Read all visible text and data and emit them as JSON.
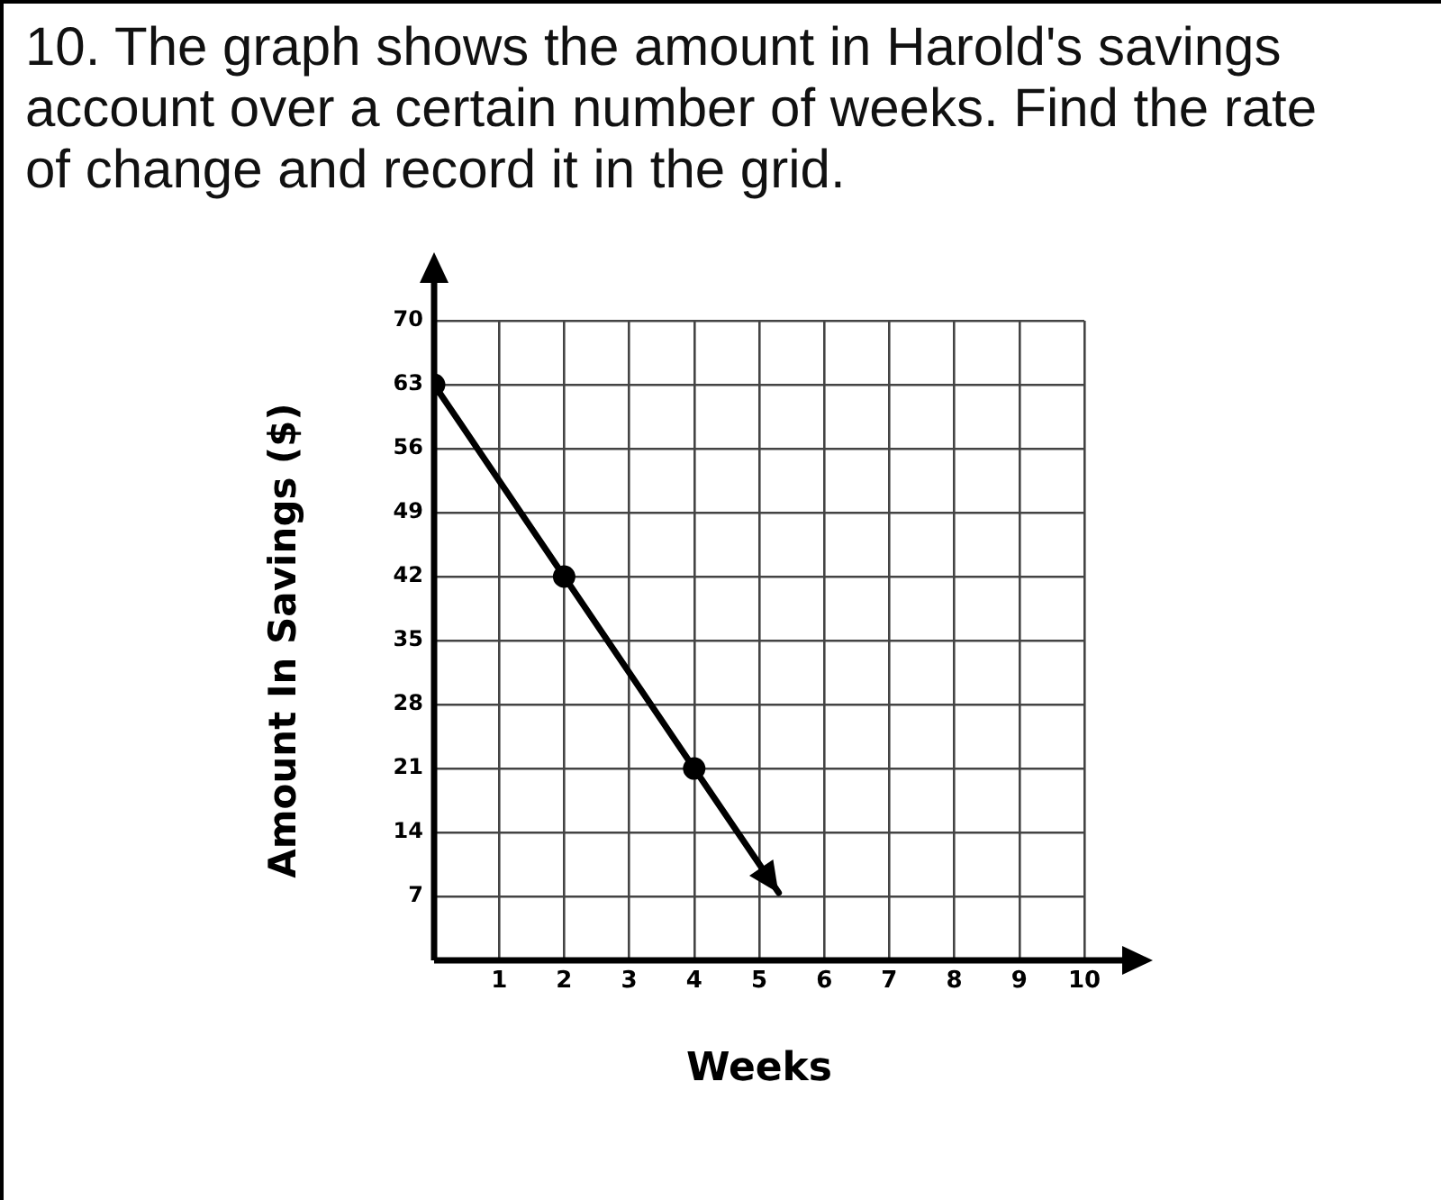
{
  "chart_data": {
    "type": "line",
    "title": "10. The graph shows the amount in Harold's savings account over a certain number of weeks. Find the rate of change and record it in the grid.",
    "xlabel": "Weeks",
    "ylabel": "Amount In Savings ($)",
    "series": [
      {
        "color": "#000000",
        "x": [
          0,
          2,
          4,
          5.3
        ],
        "values": [
          63,
          42,
          21,
          7.4
        ]
      }
    ],
    "xlim": [
      0,
      10
    ],
    "ylim": [
      0,
      70
    ],
    "xticks": [
      {
        "value": 0,
        "label": null
      },
      1,
      2,
      3,
      4,
      5,
      6,
      7,
      8,
      9,
      10
    ],
    "yticks": [
      {
        "value": 0,
        "label": null
      },
      7,
      14,
      21,
      28,
      35,
      42,
      49,
      56,
      63,
      70
    ],
    "grid": true,
    "legend": false,
    "marker": "circle",
    "line_style": "solid"
  }
}
